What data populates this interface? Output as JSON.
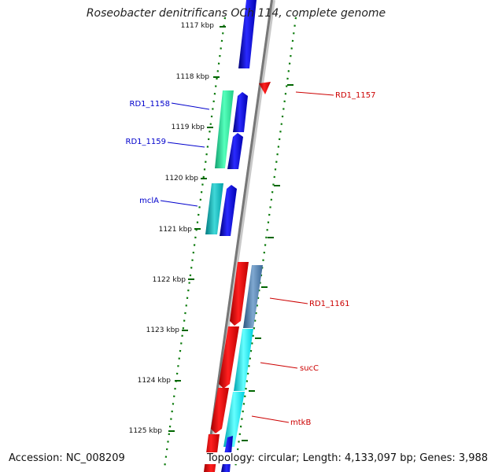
{
  "title": "Roseobacter denitrificans OCh 114, complete genome",
  "footer": {
    "accession": "Accession: NC_008209",
    "info": "Topology: circular; Length: 4,133,097 bp; Genes: 3,988"
  },
  "ruler": {
    "unit": "kbp",
    "ticks": [
      "1117 kbp",
      "1118 kbp",
      "1119 kbp",
      "1120 kbp",
      "1121 kbp",
      "1122 kbp",
      "1123 kbp",
      "1124 kbp",
      "1125 kbp"
    ]
  },
  "gene_labels": [
    {
      "name": "RD1_1158",
      "color": "#0000cc"
    },
    {
      "name": "RD1_1159",
      "color": "#0000cc"
    },
    {
      "name": "mclA",
      "color": "#0000cc"
    },
    {
      "name": "RD1_1157",
      "color": "#cc0000"
    },
    {
      "name": "RD1_1161",
      "color": "#cc0000"
    },
    {
      "name": "sucC",
      "color": "#cc0000"
    },
    {
      "name": "mtkB",
      "color": "#cc0000"
    }
  ],
  "colors": {
    "forward": "#0000ff",
    "reverse": "#ff0000",
    "green_gene": "#33ee99",
    "cyan_gene": "#00e5ee",
    "teal_gene": "#00aaaa",
    "steel_gene": "#4477aa",
    "backbone": "#888888",
    "tick": "#006600"
  }
}
